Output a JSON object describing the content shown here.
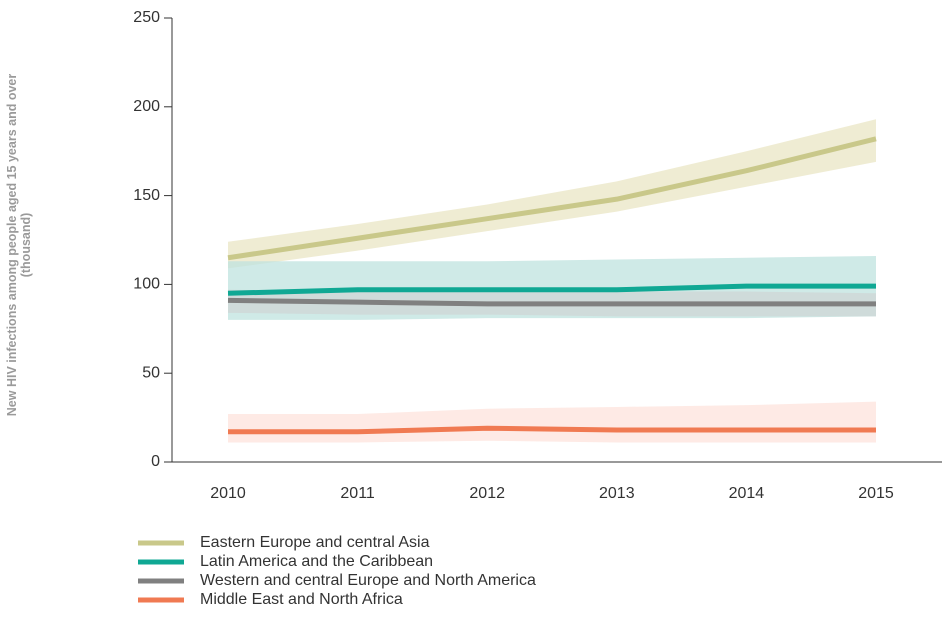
{
  "chart_data": {
    "type": "line",
    "title": "",
    "xlabel": "",
    "ylabel_line1": "New HIV infections among people aged 15 years and over",
    "ylabel_line2": "(thousand)",
    "x": [
      2010,
      2011,
      2012,
      2013,
      2014,
      2015
    ],
    "xlim": [
      2010,
      2015
    ],
    "ylim": [
      0,
      250
    ],
    "yticks": [
      0,
      50,
      100,
      150,
      200,
      250
    ],
    "grid": false,
    "legend_position": "bottom-left",
    "series": [
      {
        "name": "Eastern Europe and central Asia",
        "color": "#c9c88a",
        "band_color": "#e9e6c4",
        "values": [
          115,
          126,
          137,
          148,
          164,
          182
        ],
        "lower": [
          109,
          119,
          130,
          141,
          155,
          169
        ],
        "upper": [
          124,
          134,
          145,
          158,
          175,
          193
        ]
      },
      {
        "name": "Latin America and the Caribbean",
        "color": "#10a894",
        "band_color": "#bfe3df",
        "values": [
          95,
          97,
          97,
          97,
          99,
          99
        ],
        "lower": [
          80,
          80,
          81,
          81,
          81,
          82
        ],
        "upper": [
          113,
          113,
          113,
          114,
          115,
          116
        ]
      },
      {
        "name": "Western and central Europe and North America",
        "color": "#808080",
        "band_color": "#cfd5d5",
        "values": [
          91,
          90,
          89,
          89,
          89,
          89
        ],
        "lower": [
          84,
          83,
          83,
          82,
          82,
          82
        ],
        "upper": [
          97,
          96,
          96,
          96,
          96,
          95
        ]
      },
      {
        "name": "Middle East and North Africa",
        "color": "#f07a52",
        "band_color": "#fde3dc",
        "values": [
          17,
          17,
          19,
          18,
          18,
          18
        ],
        "lower": [
          11,
          11,
          12,
          11,
          11,
          11
        ],
        "upper": [
          27,
          27,
          30,
          31,
          32,
          34
        ]
      }
    ]
  }
}
